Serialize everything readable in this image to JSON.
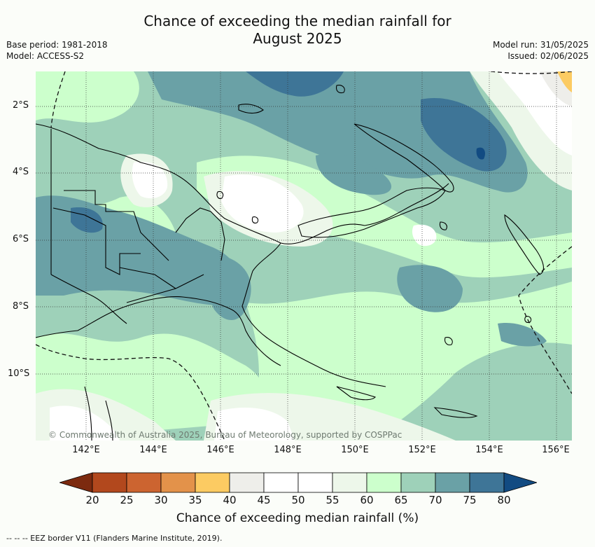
{
  "header": {
    "title_line1": "Chance of exceeding the median rainfall for",
    "title_line2": "August 2025",
    "base_period": "Base period: 1981-2018",
    "model": "Model: ACCESS-S2",
    "model_run": "Model run: 31/05/2025",
    "issued": "Issued: 02/06/2025"
  },
  "map": {
    "lat_labels": [
      "2°S",
      "4°S",
      "6°S",
      "8°S",
      "10°S"
    ],
    "lon_labels": [
      "142°E",
      "144°E",
      "146°E",
      "148°E",
      "150°E",
      "152°E",
      "154°E",
      "156°E"
    ],
    "copyright": "© Commonwealth of Australia 2025, Bureau of Meteorology, supported by COSPPac"
  },
  "colorbar": {
    "ticks": [
      "20",
      "25",
      "30",
      "35",
      "40",
      "45",
      "50",
      "55",
      "60",
      "65",
      "70",
      "75",
      "80"
    ],
    "colors": [
      "#7c2a0f",
      "#b2481d",
      "#cc6430",
      "#e3924a",
      "#fccb62",
      "#eeeeea",
      "#ffffff",
      "#ffffff",
      "#edf7ea",
      "#ccffcc",
      "#9ed1b9",
      "#6aa1a6",
      "#3e7597",
      "#124b82"
    ],
    "label": "Chance of exceeding median rainfall (%)"
  },
  "legend": {
    "eez": "-- -- -- EEZ border V11 (Flanders Marine Institute, 2019)."
  }
}
